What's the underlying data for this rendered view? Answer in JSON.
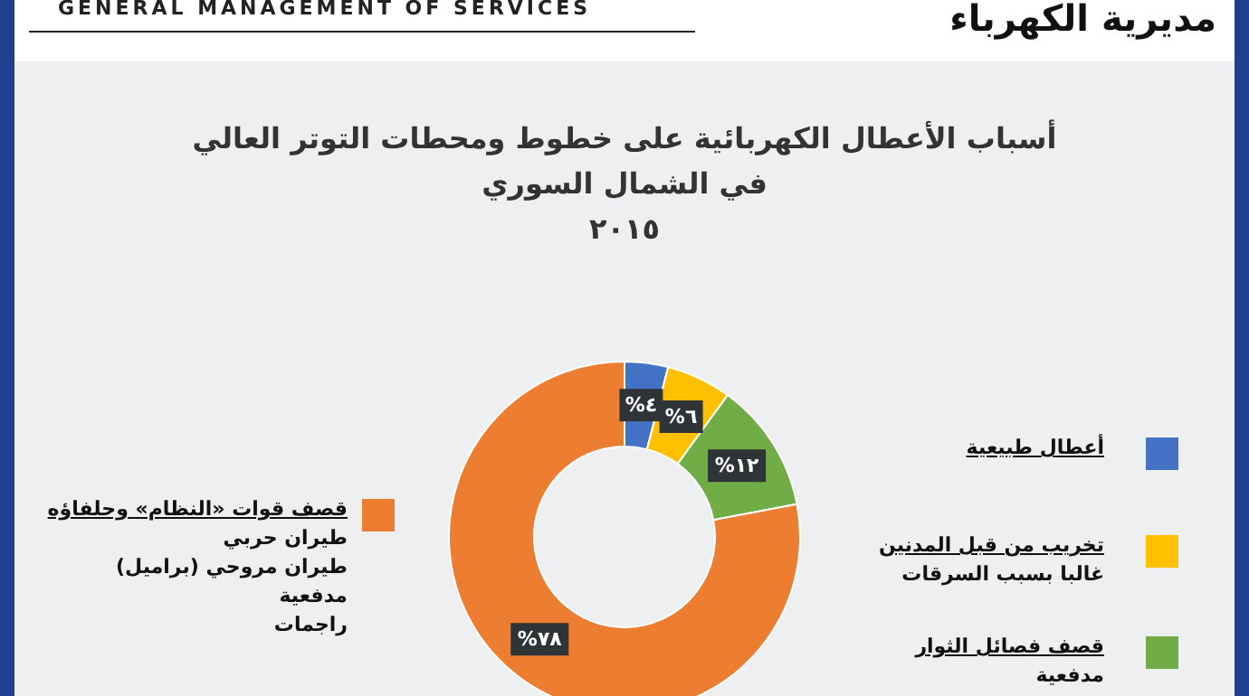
{
  "chart_data": {
    "type": "donut",
    "title": "أسباب الأعطال الكهربائية على خطوط ومحطات التوتر العالي\nفي الشمال السوري",
    "subtitle": "٢٠١٥",
    "annotations": [
      "GENERAL MANAGEMENT OF SERVICES",
      "مديرية الكهرباء"
    ],
    "categories": [
      "أعطال طبيعية",
      "تخريب من قبل المدنين\nغالبا بسبب السرقات",
      "قصف فصائل الثوار\nمدفعية",
      "قصف قوات «النظام» وحلفاؤه\nطيران حربي\nطيران مروحي (براميل)\nمدفعية\nراجمات"
    ],
    "values": [
      4,
      6,
      12,
      78
    ],
    "colors": [
      "#4472c4",
      "#ffc000",
      "#70ad47",
      "#ed7d31"
    ],
    "value_labels": [
      "%٤",
      "%٦",
      "%١٢",
      "%٧٨"
    ],
    "legend": "bottom"
  }
}
